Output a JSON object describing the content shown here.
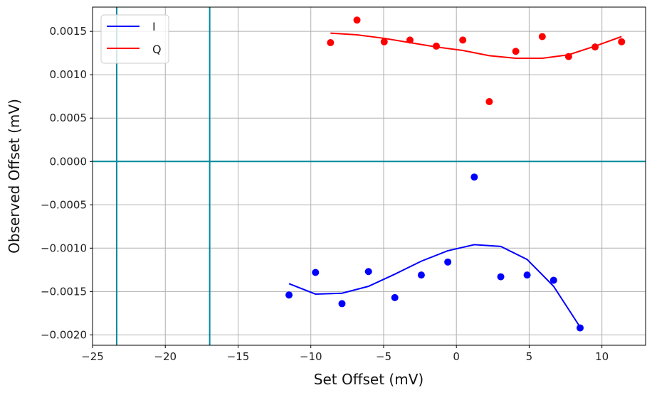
{
  "chart_data": {
    "type": "scatter",
    "title": "",
    "xlabel": "Set Offset (mV)",
    "ylabel": "Observed Offset (mV)",
    "xlim": [
      -25,
      13
    ],
    "ylim": [
      -0.00212,
      0.00178
    ],
    "grid": true,
    "legend_position": "top-left",
    "xticks": [
      -25,
      -20,
      -15,
      -10,
      -5,
      0,
      5,
      10
    ],
    "xtick_labels": [
      "−25",
      "−20",
      "−15",
      "−10",
      "−5",
      "0",
      "5",
      "10"
    ],
    "yticks": [
      0.0015,
      0.001,
      0.0005,
      0,
      -0.0005,
      -0.001,
      -0.0015,
      -0.002
    ],
    "ytick_labels": [
      "0.0015",
      "0.0010",
      "0.0005",
      "0.0000",
      "−0.0005",
      "−0.0010",
      "−0.0015",
      "−0.0020"
    ],
    "reference_lines": {
      "vertical": [
        -23.34,
        -16.95
      ],
      "horizontal": [
        0
      ],
      "color": "#00899b"
    },
    "series": [
      {
        "name": "I",
        "color": "#0000ff",
        "points_x": [
          -11.5,
          -9.68,
          -7.86,
          -6.04,
          -4.23,
          -2.41,
          -0.59,
          1.23,
          3.05,
          4.86,
          6.68,
          8.5
        ],
        "points_y": [
          -0.00154,
          -0.00128,
          -0.00164,
          -0.00127,
          -0.00157,
          -0.00131,
          -0.00116,
          -0.00018,
          -0.00133,
          -0.00131,
          -0.00137,
          -0.00192
        ],
        "fit_y": [
          -0.00141,
          -0.00153,
          -0.00152,
          -0.00144,
          -0.0013,
          -0.00115,
          -0.00103,
          -0.00096,
          -0.00098,
          -0.00113,
          -0.00144,
          -0.00191
        ]
      },
      {
        "name": "Q",
        "color": "#ff0000",
        "points_x": [
          -8.65,
          -6.83,
          -4.96,
          -3.19,
          -1.38,
          0.44,
          2.26,
          4.08,
          5.9,
          7.71,
          9.53,
          11.35
        ],
        "points_y": [
          0.00137,
          0.00163,
          0.00138,
          0.0014,
          0.00133,
          0.0014,
          0.00069,
          0.00127,
          0.00144,
          0.00121,
          0.00132,
          0.00138
        ],
        "fit_y": [
          0.00148,
          0.00146,
          0.00142,
          0.00137,
          0.00132,
          0.00128,
          0.00122,
          0.00119,
          0.00119,
          0.00123,
          0.00133,
          0.00144
        ]
      }
    ]
  }
}
